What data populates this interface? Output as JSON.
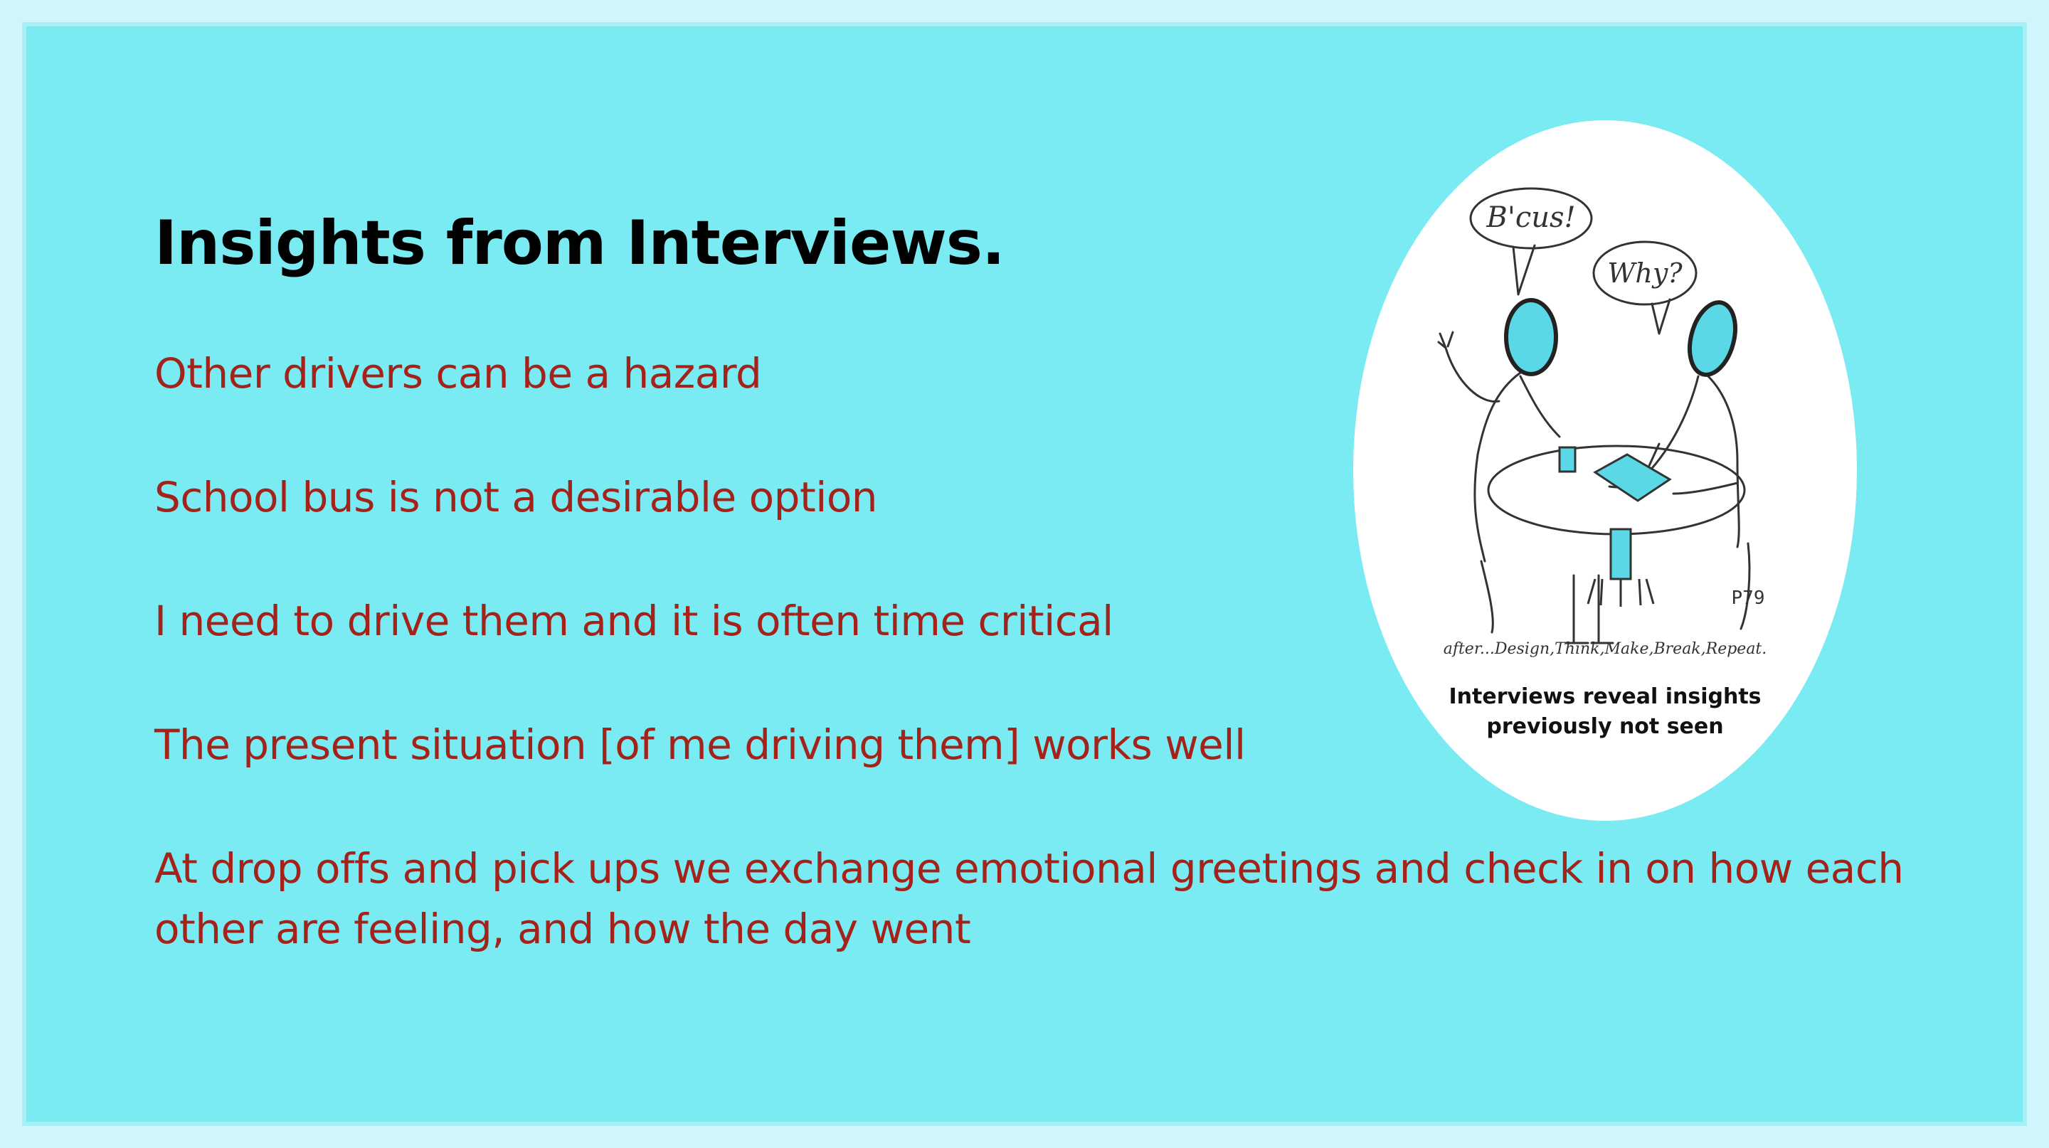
{
  "slide": {
    "title": "Insights from Interviews.",
    "insights": [
      "Other drivers can be a hazard",
      "School bus is not a desirable option",
      "I need to drive them and it is often time critical",
      "The present situation [of me driving them] works well",
      "At drop offs and pick ups we exchange emotional greetings and check in on how each other are feeling, and how the day went"
    ]
  },
  "illustration": {
    "bubble_left": "B'cus!",
    "bubble_right": "Why?",
    "page_ref": "P79",
    "subtitle": "after...Design,Think,Make,Break,Repeat.",
    "caption_line1": "Interviews reveal insights",
    "caption_line2": "previously not seen"
  },
  "colors": {
    "background": "#7aebf3",
    "insight_text": "#a3231a",
    "title_text": "#000000",
    "accent_cyan": "#5ad8e6"
  }
}
